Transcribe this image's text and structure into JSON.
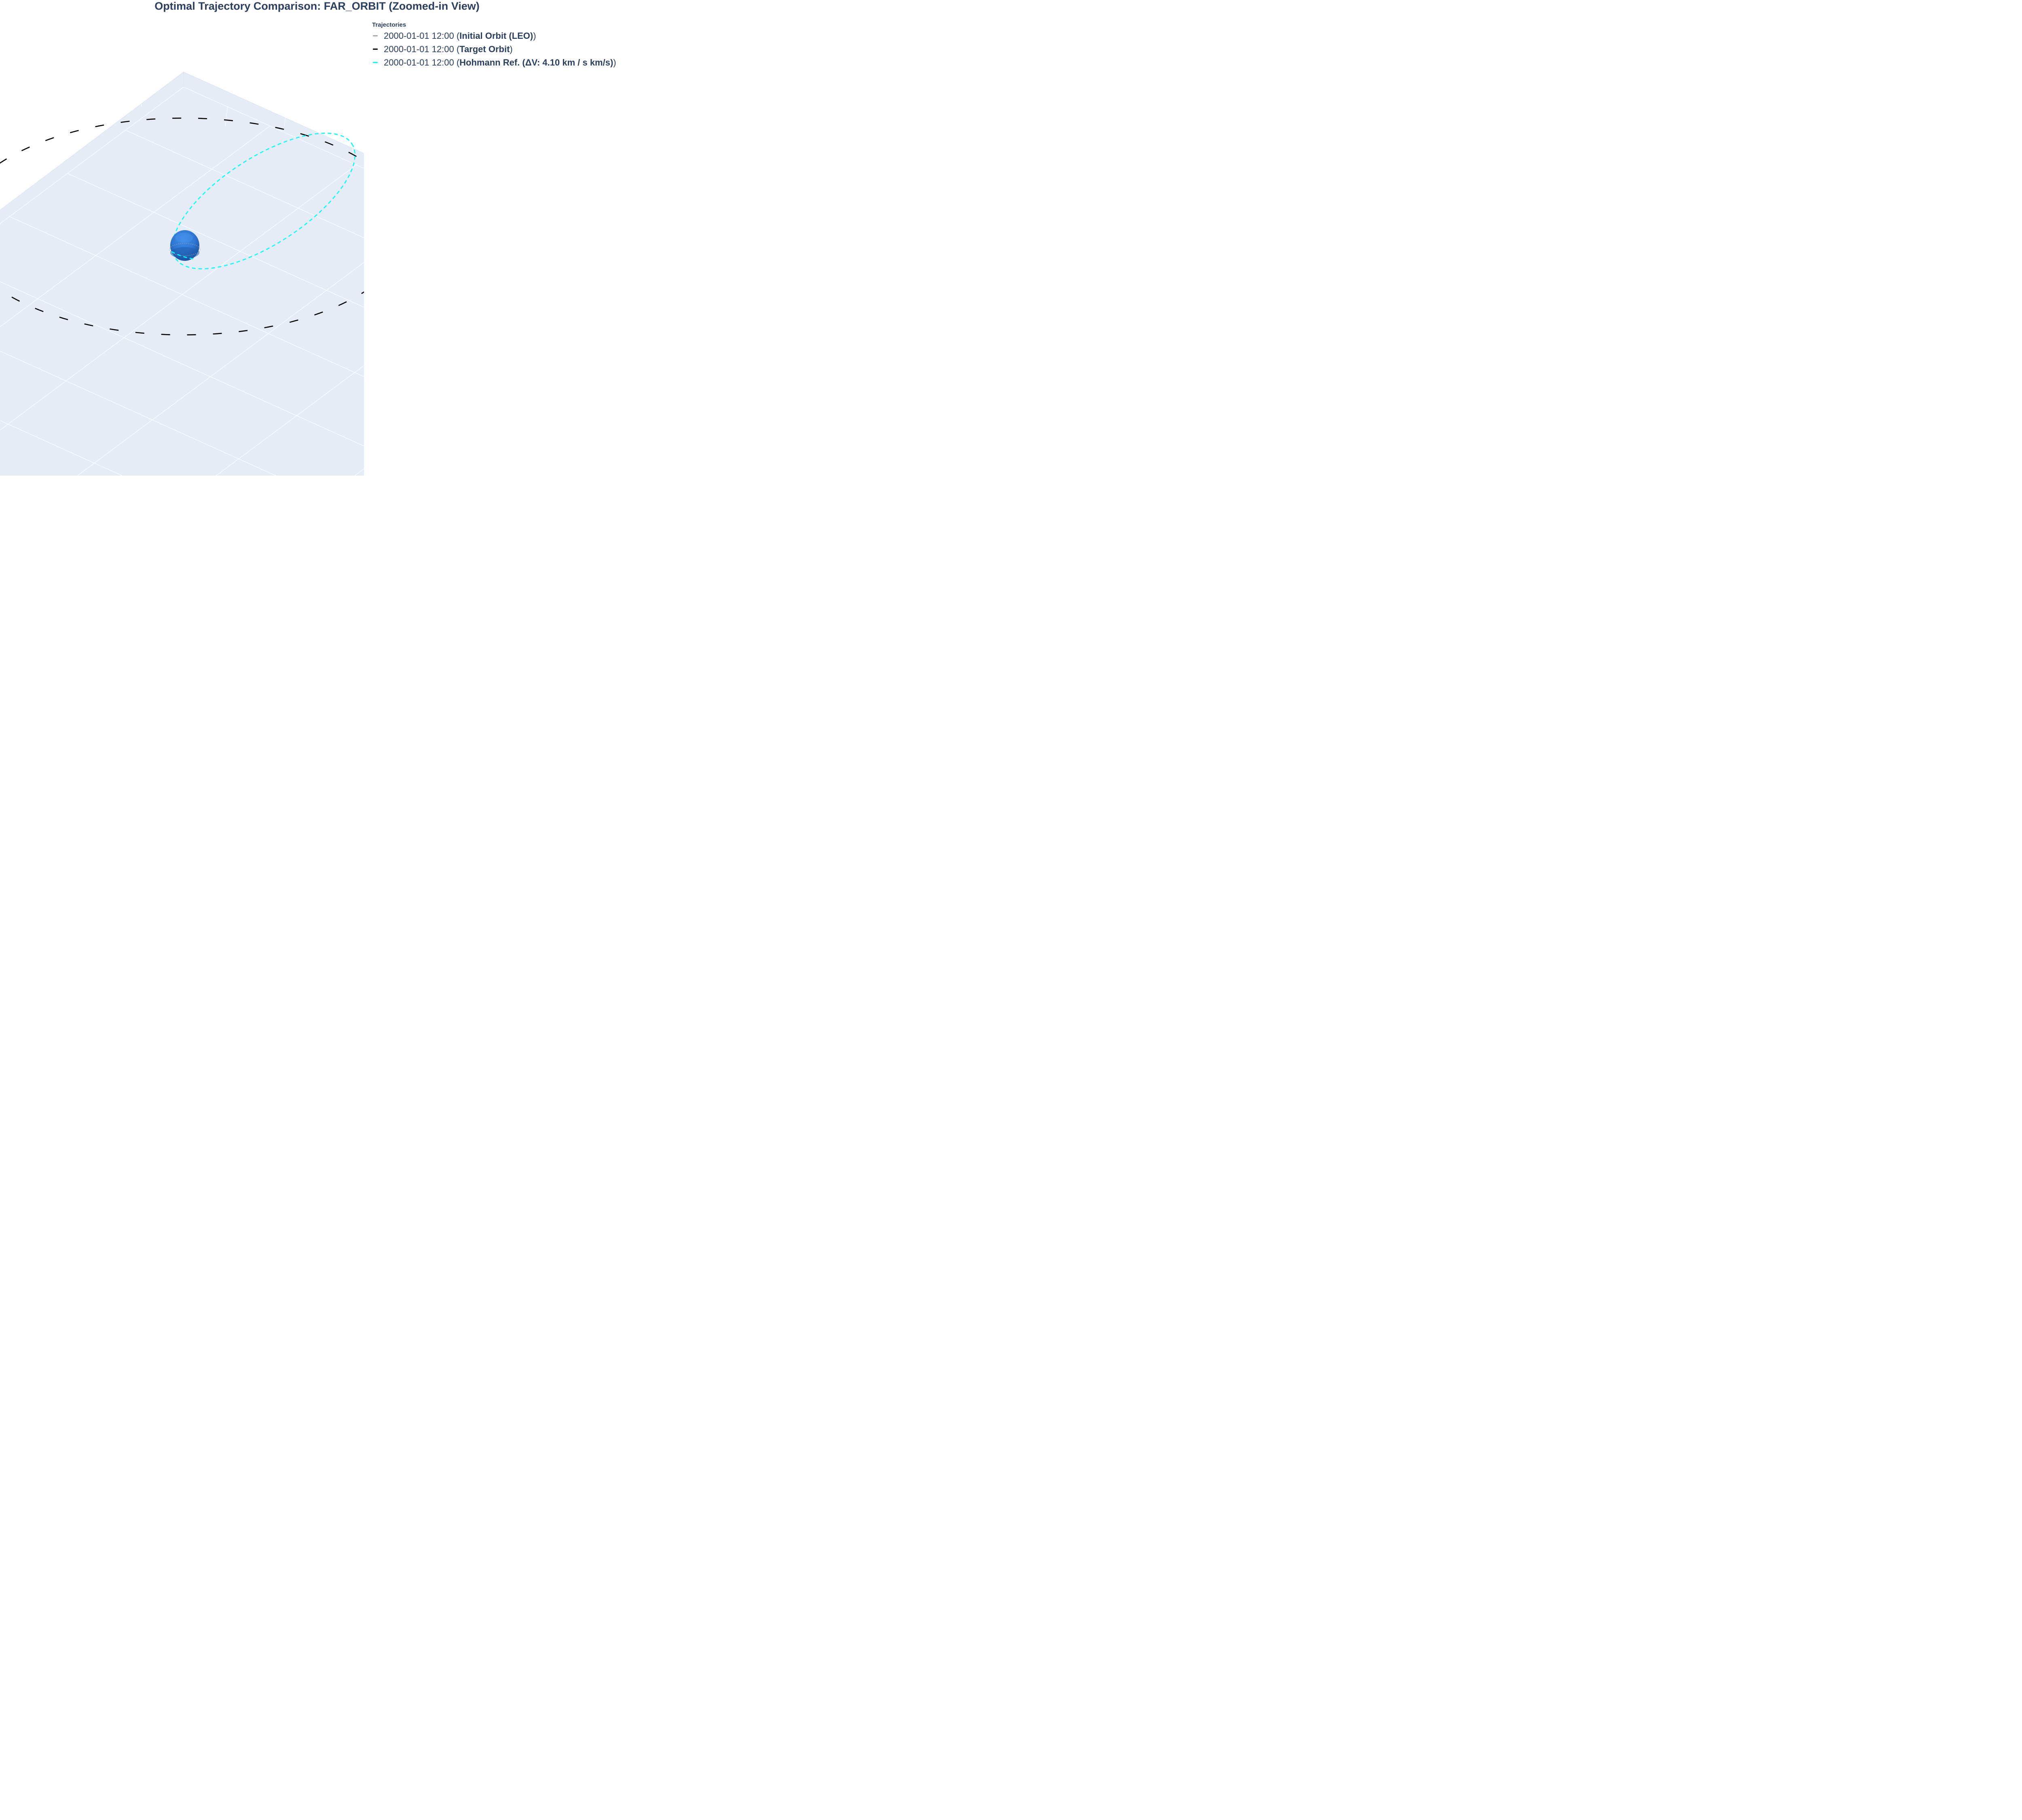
{
  "chart_data": {
    "type": "line",
    "title": "Optimal Trajectory Comparison: FAR_ORBIT (Zoomed-in View)",
    "legend": {
      "title": "Trajectories",
      "placement": "top-right",
      "items": [
        {
          "prefix": "2000-01-01 12:00 (",
          "name": "Initial Orbit (LEO)",
          "suffix": ")",
          "color": "#aaaaaa"
        },
        {
          "prefix": "2000-01-01 12:00 (",
          "name": "Target Orbit",
          "suffix": ")",
          "color": "#000000"
        },
        {
          "prefix": "2000-01-01 12:00 (",
          "name": "Hohmann Ref. (ΔV: 4.10 km / s km/s)",
          "suffix": ")",
          "color": "#00ffff"
        }
      ]
    },
    "scene": {
      "projection": "3d",
      "grid": true,
      "background": "#e5ecf6",
      "gridcolor": "#ffffff"
    },
    "central_body": {
      "shape": "sphere",
      "color": "#2f77d3"
    },
    "series": [
      {
        "name": "Initial Orbit (LEO)",
        "dash": "dot",
        "color": "#aaaaaa"
      },
      {
        "name": "Target Orbit",
        "dash": "longdash",
        "color": "#000000"
      },
      {
        "name": "Hohmann Ref.",
        "dash": "dash",
        "color": "#00ffff"
      }
    ]
  }
}
